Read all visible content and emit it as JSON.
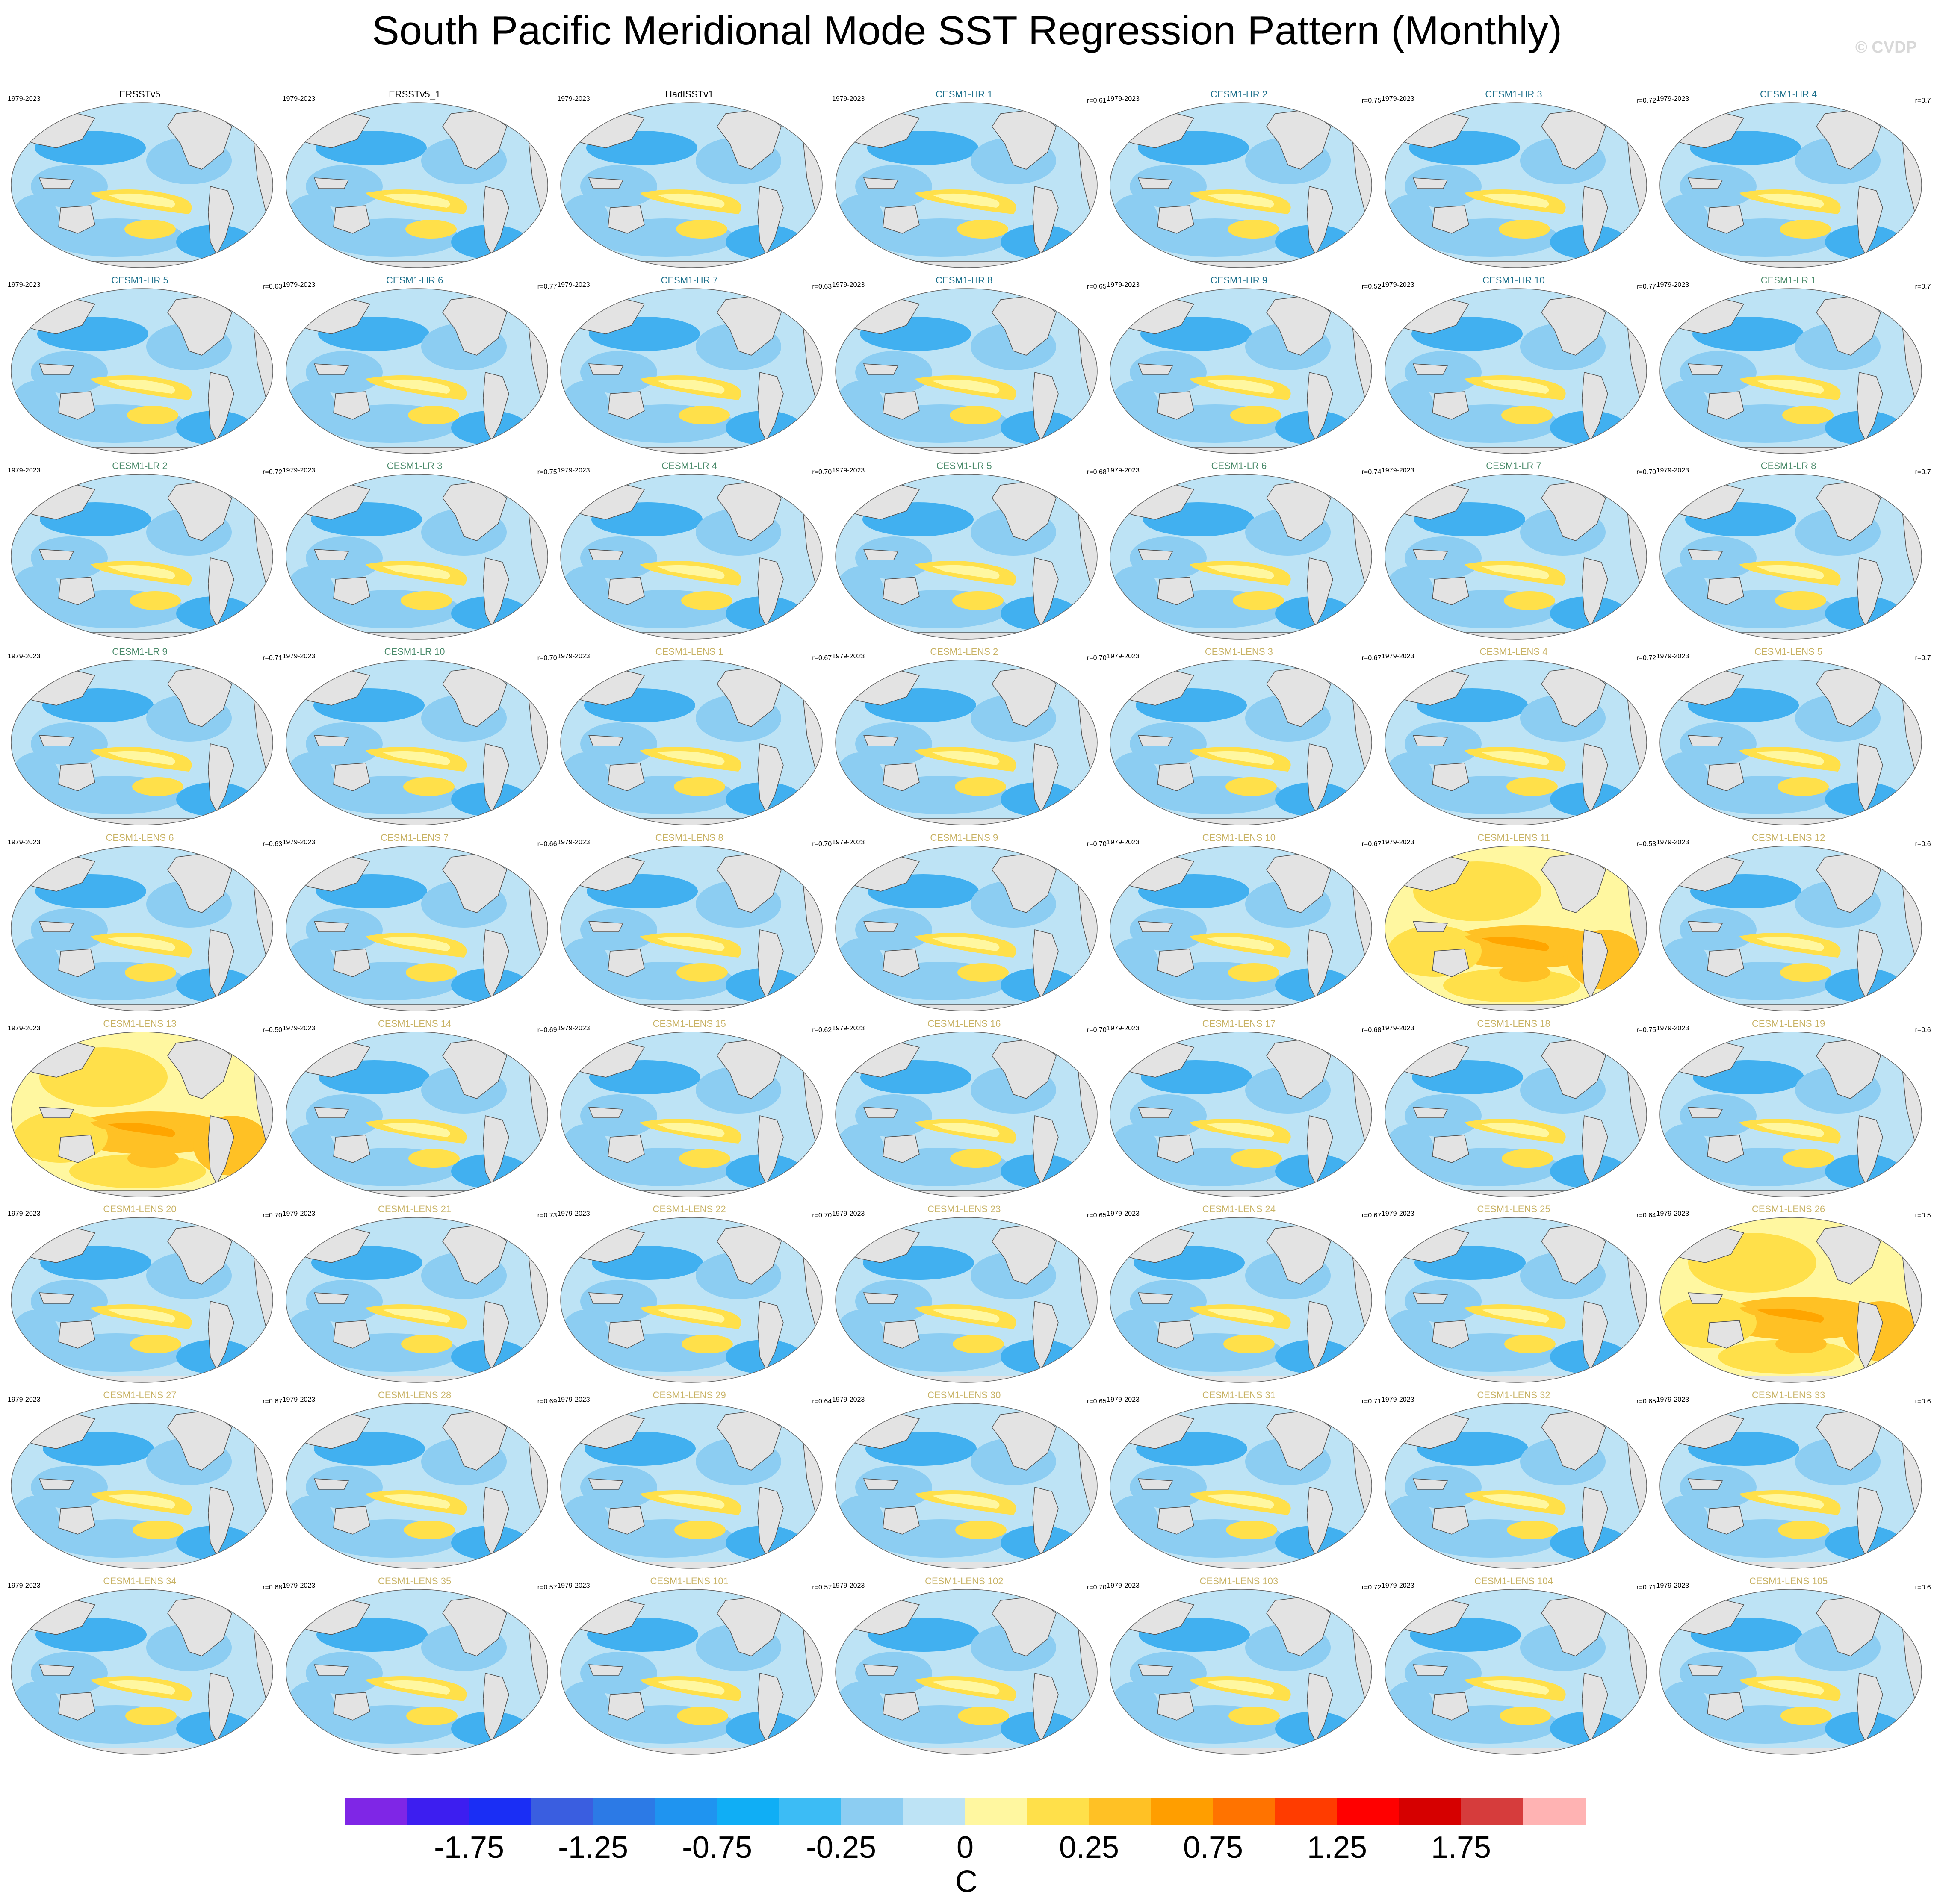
{
  "title": "South Pacific Meridional Mode SST Regression Pattern (Monthly)",
  "watermark": "© CVDP",
  "period": "1979-2023",
  "panels": [
    {
      "name": "ERSSTv5",
      "kind": "obs",
      "r": ""
    },
    {
      "name": "ERSSTv5_1",
      "kind": "obs",
      "r": ""
    },
    {
      "name": "HadISSTv1",
      "kind": "obs",
      "r": ""
    },
    {
      "name": "CESM1-HR 1",
      "kind": "hr",
      "r": "r=0.61"
    },
    {
      "name": "CESM1-HR 2",
      "kind": "hr",
      "r": "r=0.75"
    },
    {
      "name": "CESM1-HR 3",
      "kind": "hr",
      "r": "r=0.72"
    },
    {
      "name": "CESM1-HR 4",
      "kind": "hr",
      "r": "r=0.7"
    },
    {
      "name": "CESM1-HR 5",
      "kind": "hr",
      "r": "r=0.63"
    },
    {
      "name": "CESM1-HR 6",
      "kind": "hr",
      "r": "r=0.77"
    },
    {
      "name": "CESM1-HR 7",
      "kind": "hr",
      "r": "r=0.63"
    },
    {
      "name": "CESM1-HR 8",
      "kind": "hr",
      "r": "r=0.65"
    },
    {
      "name": "CESM1-HR 9",
      "kind": "hr",
      "r": "r=0.52"
    },
    {
      "name": "CESM1-HR 10",
      "kind": "hr",
      "r": "r=0.77"
    },
    {
      "name": "CESM1-LR 1",
      "kind": "lr",
      "r": "r=0.7"
    },
    {
      "name": "CESM1-LR 2",
      "kind": "lr",
      "r": "r=0.72"
    },
    {
      "name": "CESM1-LR 3",
      "kind": "lr",
      "r": "r=0.75"
    },
    {
      "name": "CESM1-LR 4",
      "kind": "lr",
      "r": "r=0.70"
    },
    {
      "name": "CESM1-LR 5",
      "kind": "lr",
      "r": "r=0.68"
    },
    {
      "name": "CESM1-LR 6",
      "kind": "lr",
      "r": "r=0.74"
    },
    {
      "name": "CESM1-LR 7",
      "kind": "lr",
      "r": "r=0.70"
    },
    {
      "name": "CESM1-LR 8",
      "kind": "lr",
      "r": "r=0.7"
    },
    {
      "name": "CESM1-LR 9",
      "kind": "lr",
      "r": "r=0.71"
    },
    {
      "name": "CESM1-LR 10",
      "kind": "lr",
      "r": "r=0.70"
    },
    {
      "name": "CESM1-LENS 1",
      "kind": "lens",
      "r": "r=0.67"
    },
    {
      "name": "CESM1-LENS 2",
      "kind": "lens",
      "r": "r=0.70"
    },
    {
      "name": "CESM1-LENS 3",
      "kind": "lens",
      "r": "r=0.67"
    },
    {
      "name": "CESM1-LENS 4",
      "kind": "lens",
      "r": "r=0.72"
    },
    {
      "name": "CESM1-LENS 5",
      "kind": "lens",
      "r": "r=0.7"
    },
    {
      "name": "CESM1-LENS 6",
      "kind": "lens",
      "r": "r=0.63"
    },
    {
      "name": "CESM1-LENS 7",
      "kind": "lens",
      "r": "r=0.66"
    },
    {
      "name": "CESM1-LENS 8",
      "kind": "lens",
      "r": "r=0.70"
    },
    {
      "name": "CESM1-LENS 9",
      "kind": "lens",
      "r": "r=0.70"
    },
    {
      "name": "CESM1-LENS 10",
      "kind": "lens",
      "r": "r=0.67"
    },
    {
      "name": "CESM1-LENS 11",
      "kind": "lens",
      "r": "r=0.53"
    },
    {
      "name": "CESM1-LENS 12",
      "kind": "lens",
      "r": "r=0.6"
    },
    {
      "name": "CESM1-LENS 13",
      "kind": "lens",
      "r": "r=0.50"
    },
    {
      "name": "CESM1-LENS 14",
      "kind": "lens",
      "r": "r=0.69"
    },
    {
      "name": "CESM1-LENS 15",
      "kind": "lens",
      "r": "r=0.62"
    },
    {
      "name": "CESM1-LENS 16",
      "kind": "lens",
      "r": "r=0.70"
    },
    {
      "name": "CESM1-LENS 17",
      "kind": "lens",
      "r": "r=0.68"
    },
    {
      "name": "CESM1-LENS 18",
      "kind": "lens",
      "r": "r=0.75"
    },
    {
      "name": "CESM1-LENS 19",
      "kind": "lens",
      "r": "r=0.6"
    },
    {
      "name": "CESM1-LENS 20",
      "kind": "lens",
      "r": "r=0.70"
    },
    {
      "name": "CESM1-LENS 21",
      "kind": "lens",
      "r": "r=0.73"
    },
    {
      "name": "CESM1-LENS 22",
      "kind": "lens",
      "r": "r=0.70"
    },
    {
      "name": "CESM1-LENS 23",
      "kind": "lens",
      "r": "r=0.65"
    },
    {
      "name": "CESM1-LENS 24",
      "kind": "lens",
      "r": "r=0.67"
    },
    {
      "name": "CESM1-LENS 25",
      "kind": "lens",
      "r": "r=0.64"
    },
    {
      "name": "CESM1-LENS 26",
      "kind": "lens",
      "r": "r=0.5"
    },
    {
      "name": "CESM1-LENS 27",
      "kind": "lens",
      "r": "r=0.67"
    },
    {
      "name": "CESM1-LENS 28",
      "kind": "lens",
      "r": "r=0.69"
    },
    {
      "name": "CESM1-LENS 29",
      "kind": "lens",
      "r": "r=0.64"
    },
    {
      "name": "CESM1-LENS 30",
      "kind": "lens",
      "r": "r=0.65"
    },
    {
      "name": "CESM1-LENS 31",
      "kind": "lens",
      "r": "r=0.71"
    },
    {
      "name": "CESM1-LENS 32",
      "kind": "lens",
      "r": "r=0.65"
    },
    {
      "name": "CESM1-LENS 33",
      "kind": "lens",
      "r": "r=0.6"
    },
    {
      "name": "CESM1-LENS 34",
      "kind": "lens",
      "r": "r=0.68"
    },
    {
      "name": "CESM1-LENS 35",
      "kind": "lens",
      "r": "r=0.57"
    },
    {
      "name": "CESM1-LENS 101",
      "kind": "lens",
      "r": "r=0.57"
    },
    {
      "name": "CESM1-LENS 102",
      "kind": "lens",
      "r": "r=0.70"
    },
    {
      "name": "CESM1-LENS 103",
      "kind": "lens",
      "r": "r=0.72"
    },
    {
      "name": "CESM1-LENS 104",
      "kind": "lens",
      "r": "r=0.71"
    },
    {
      "name": "CESM1-LENS 105",
      "kind": "lens",
      "r": "r=0.6"
    }
  ],
  "warm_panels": [
    "CESM1-LENS 11",
    "CESM1-LENS 13",
    "CESM1-LENS 26"
  ],
  "title_colors": {
    "obs": "#000000",
    "hr": "#1a6e8a",
    "lr": "#4a8a6a",
    "lens": "#c8b264"
  },
  "map_colors": {
    "ocean_base": "#bde3f5",
    "cool": "#8ccdf2",
    "cool_strong": "#41b0f0",
    "warm": "#fff7a0",
    "warm_mid": "#ffe04a",
    "warm_strong": "#ffc125",
    "land": "#e3e3e3",
    "coast": "#555555"
  },
  "colorbar": {
    "colors": [
      "#7f26e6",
      "#3d1ef0",
      "#1a2ef5",
      "#3a5ee0",
      "#2c7ae6",
      "#1f94f0",
      "#10aef5",
      "#3cbcf5",
      "#8ccdf2",
      "#bde3f5",
      "#fff7a0",
      "#ffe04a",
      "#ffc125",
      "#ff9e00",
      "#ff7300",
      "#ff3c00",
      "#ff0000",
      "#d60000",
      "#d63c3c",
      "#ffb3b3"
    ],
    "tick_labels": [
      "-1.75",
      "-1.25",
      "-0.75",
      "-0.25",
      "0",
      "0.25",
      "0.75",
      "1.25",
      "1.75"
    ],
    "unit": "C"
  }
}
